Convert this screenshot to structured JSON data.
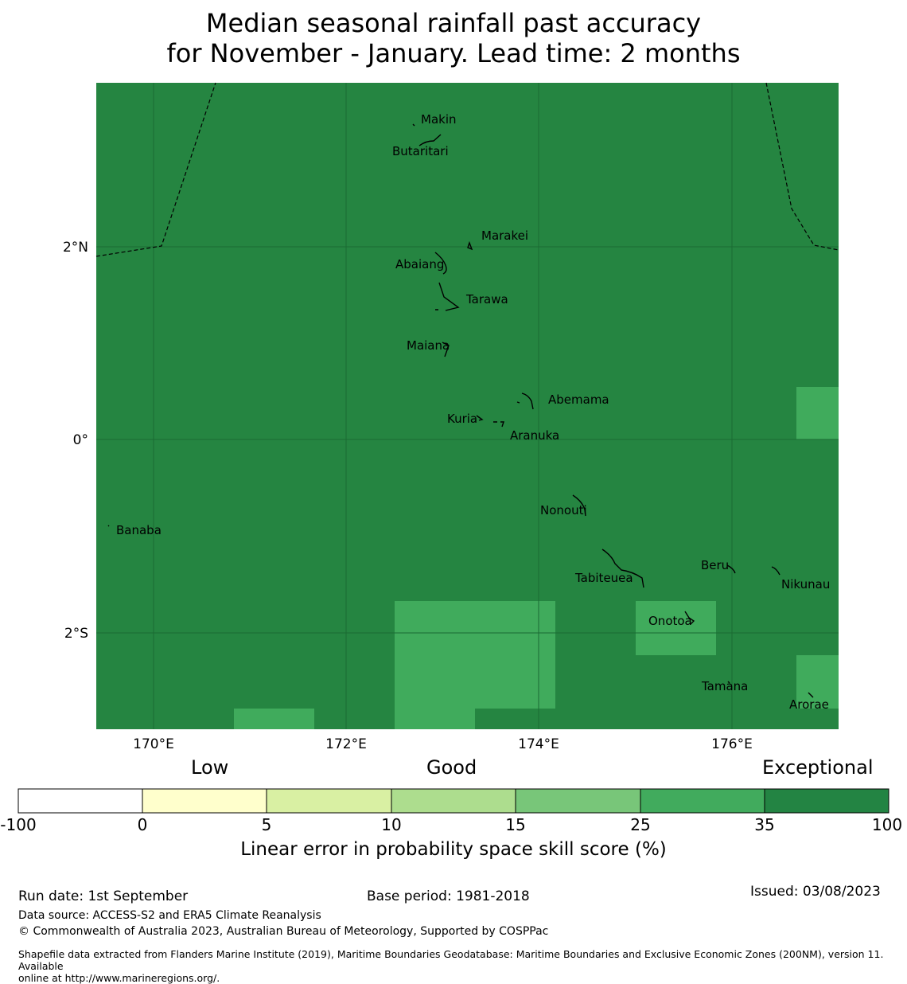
{
  "title": {
    "line1": "Median seasonal rainfall past accuracy",
    "line2": "for November - January. Lead time: 2 months"
  },
  "map": {
    "background_color": "#258541",
    "highlight_color": "#40ab5c",
    "grid_color": "#1a6a33",
    "lon_ticks": [
      "170°E",
      "172°E",
      "174°E",
      "176°E"
    ],
    "lat_ticks": [
      "2°N",
      "0°",
      "2°S"
    ],
    "islands": [
      {
        "name": "Makin",
        "lon": 173.0,
        "lat": 3.3
      },
      {
        "name": "Butaritari",
        "lon": 172.9,
        "lat": 3.05
      },
      {
        "name": "Marakei",
        "lon": 173.3,
        "lat": 2.0
      },
      {
        "name": "Abaiang",
        "lon": 173.0,
        "lat": 1.85
      },
      {
        "name": "Tarawa",
        "lon": 173.1,
        "lat": 1.4
      },
      {
        "name": "Maiana",
        "lon": 173.0,
        "lat": 0.95
      },
      {
        "name": "Abemama",
        "lon": 173.9,
        "lat": 0.4
      },
      {
        "name": "Kuria",
        "lon": 173.4,
        "lat": 0.22
      },
      {
        "name": "Aranuka",
        "lon": 173.6,
        "lat": 0.17
      },
      {
        "name": "Nonouti",
        "lon": 174.4,
        "lat": -0.7
      },
      {
        "name": "Banaba",
        "lon": 169.5,
        "lat": -0.85
      },
      {
        "name": "Tabiteuea",
        "lon": 174.9,
        "lat": -1.4
      },
      {
        "name": "Beru",
        "lon": 176.0,
        "lat": -1.35
      },
      {
        "name": "Nikunau",
        "lon": 176.5,
        "lat": -1.35
      },
      {
        "name": "Onotoa",
        "lon": 175.6,
        "lat": -1.8
      },
      {
        "name": "Tamana",
        "lon": 176.0,
        "lat": -2.5
      },
      {
        "name": "Arorae",
        "lon": 176.8,
        "lat": -2.65
      }
    ]
  },
  "colorbar": {
    "category_low": "Low",
    "category_good": "Good",
    "category_exceptional": "Exceptional",
    "ticks": [
      "-100",
      "0",
      "5",
      "10",
      "15",
      "25",
      "35",
      "100"
    ],
    "colors": [
      "#ffffff",
      "#ffffcc",
      "#d9f0a3",
      "#addd8e",
      "#78c679",
      "#41ab5d",
      "#238443"
    ],
    "label": "Linear error in probability space skill score (%)"
  },
  "footer": {
    "run_date": "Run date: 1st September",
    "base_period": "Base period: 1981-2018",
    "issued": "Issued: 03/08/2023",
    "data_source": "Data source: ACCESS-S2 and ERA5 Climate Reanalysis",
    "copyright": "© Commonwealth of Australia 2023, Australian Bureau of Meteorology, Supported by COSPPac",
    "shapefile_line1": "Shapefile data extracted from Flanders Marine Institute (2019), Maritime Boundaries Geodatabase: Maritime Boundaries and Exclusive Economic Zones (200NM), version 11. Available",
    "shapefile_line2": "online at http://www.marineregions.org/."
  }
}
